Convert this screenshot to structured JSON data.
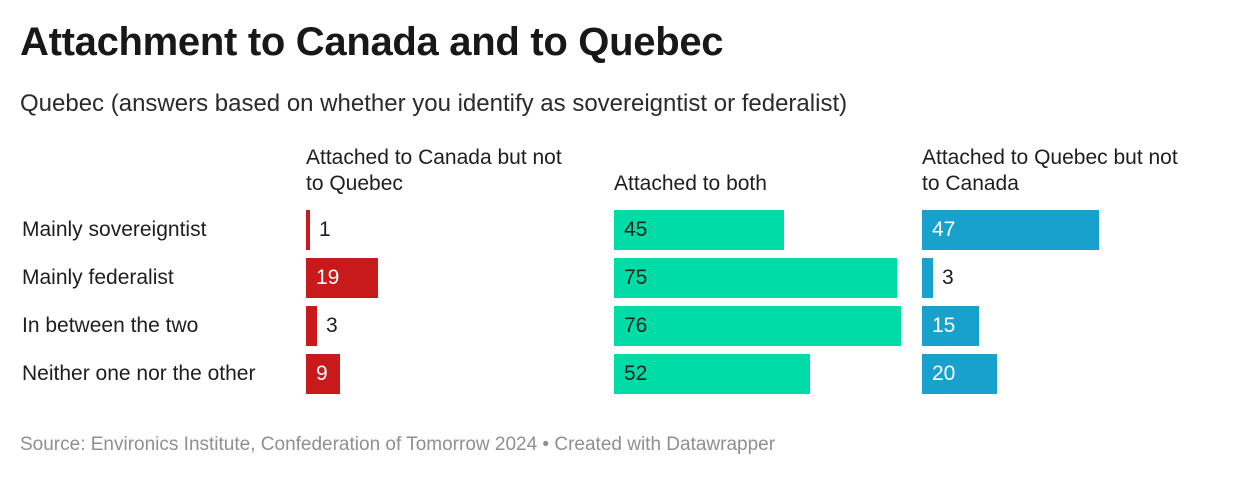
{
  "title": "Attachment to Canada and to Quebec",
  "subtitle": "Quebec (answers based on whether you identify as sovereigntist or federalist)",
  "source": "Source: Environics Institute, Confederation of Tomorrow 2024 • Created with Datawrapper",
  "chart_data": {
    "type": "bar",
    "orientation": "horizontal",
    "layout": "split-bars",
    "categories": [
      "Mainly sovereigntist",
      "Mainly federalist",
      "In between the two",
      "Neither one nor the other"
    ],
    "series": [
      {
        "name": "Attached to Canada but not to Quebec",
        "values": [
          1,
          19,
          3,
          9
        ],
        "color": "#c8191b",
        "label_color": "#ffffff"
      },
      {
        "name": "Attached to both",
        "values": [
          45,
          75,
          76,
          52
        ],
        "color": "#00dca6",
        "label_color": "#222222"
      },
      {
        "name": "Attached to Quebec but not to Canada",
        "values": [
          47,
          3,
          15,
          20
        ],
        "color": "#18a1cd",
        "label_color": "#ffffff"
      }
    ],
    "xlim": [
      0,
      76
    ],
    "grid": false,
    "legend": "column headers"
  }
}
